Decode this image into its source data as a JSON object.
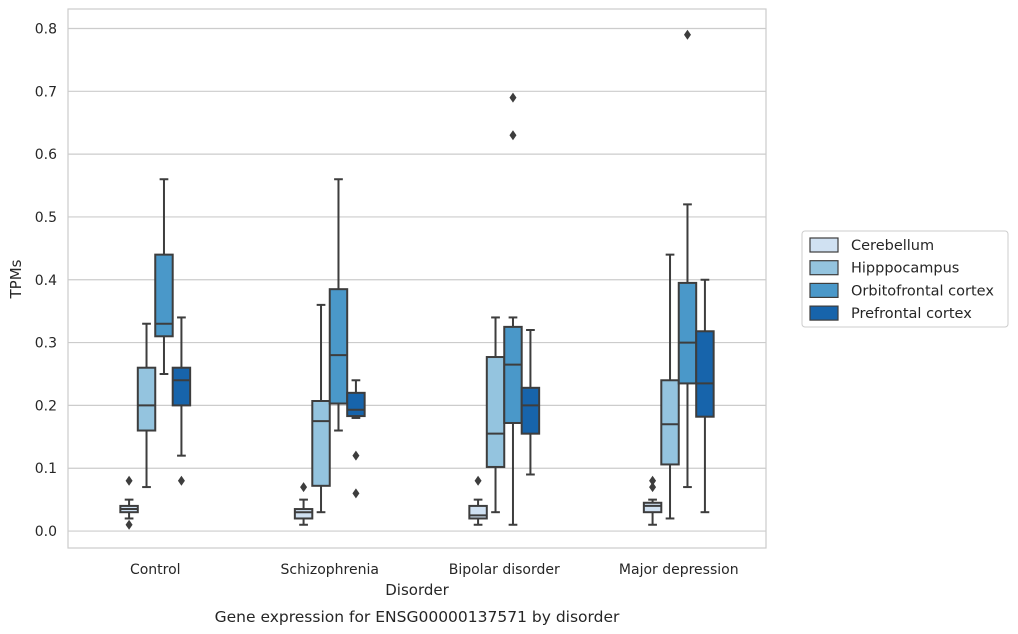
{
  "caption": "Gene expression for ENSG00000137571 by disorder",
  "chart_data": {
    "type": "boxplot",
    "xlabel": "Disorder",
    "ylabel": "TPMs",
    "ylim": [
      -0.027,
      0.831
    ],
    "yticks": [
      "0.0",
      "0.1",
      "0.2",
      "0.3",
      "0.4",
      "0.5",
      "0.6",
      "0.7",
      "0.8"
    ],
    "grid": true,
    "legend_position": "right",
    "categories": [
      "Control",
      "Schizophrenia",
      "Bipolar disorder",
      "Major depression"
    ],
    "series": [
      {
        "name": "Cerebellum",
        "color": "#d0e1f2",
        "boxes": [
          {
            "whislo": 0.02,
            "q1": 0.03,
            "med": 0.035,
            "q3": 0.04,
            "whishi": 0.05,
            "fliers": [
              0.08,
              0.01
            ]
          },
          {
            "whislo": 0.01,
            "q1": 0.02,
            "med": 0.03,
            "q3": 0.035,
            "whishi": 0.05,
            "fliers": [
              0.07
            ]
          },
          {
            "whislo": 0.01,
            "q1": 0.02,
            "med": 0.025,
            "q3": 0.04,
            "whishi": 0.05,
            "fliers": [
              0.08
            ]
          },
          {
            "whislo": 0.01,
            "q1": 0.03,
            "med": 0.04,
            "q3": 0.045,
            "whishi": 0.05,
            "fliers": [
              0.08,
              0.07
            ]
          }
        ]
      },
      {
        "name": "Hipppocampus",
        "color": "#94c4df",
        "boxes": [
          {
            "whislo": 0.07,
            "q1": 0.16,
            "med": 0.2,
            "q3": 0.26,
            "whishi": 0.33,
            "fliers": []
          },
          {
            "whislo": 0.03,
            "q1": 0.072,
            "med": 0.175,
            "q3": 0.207,
            "whishi": 0.36,
            "fliers": []
          },
          {
            "whislo": 0.03,
            "q1": 0.102,
            "med": 0.155,
            "q3": 0.277,
            "whishi": 0.34,
            "fliers": []
          },
          {
            "whislo": 0.02,
            "q1": 0.106,
            "med": 0.17,
            "q3": 0.24,
            "whishi": 0.44,
            "fliers": []
          }
        ]
      },
      {
        "name": "Orbitofrontal cortex",
        "color": "#4a98c9",
        "boxes": [
          {
            "whislo": 0.25,
            "q1": 0.31,
            "med": 0.33,
            "q3": 0.44,
            "whishi": 0.56,
            "fliers": []
          },
          {
            "whislo": 0.16,
            "q1": 0.203,
            "med": 0.28,
            "q3": 0.385,
            "whishi": 0.56,
            "fliers": []
          },
          {
            "whislo": 0.01,
            "q1": 0.172,
            "med": 0.265,
            "q3": 0.325,
            "whishi": 0.34,
            "fliers": [
              0.69,
              0.63
            ]
          },
          {
            "whislo": 0.07,
            "q1": 0.235,
            "med": 0.3,
            "q3": 0.395,
            "whishi": 0.52,
            "fliers": [
              0.79
            ]
          }
        ]
      },
      {
        "name": "Prefrontal cortex",
        "color": "#1764ab",
        "boxes": [
          {
            "whislo": 0.12,
            "q1": 0.2,
            "med": 0.24,
            "q3": 0.26,
            "whishi": 0.34,
            "fliers": [
              0.08
            ]
          },
          {
            "whislo": 0.18,
            "q1": 0.183,
            "med": 0.193,
            "q3": 0.22,
            "whishi": 0.24,
            "fliers": [
              0.12,
              0.06
            ]
          },
          {
            "whislo": 0.09,
            "q1": 0.155,
            "med": 0.2,
            "q3": 0.228,
            "whishi": 0.32,
            "fliers": []
          },
          {
            "whislo": 0.03,
            "q1": 0.182,
            "med": 0.235,
            "q3": 0.318,
            "whishi": 0.4,
            "fliers": []
          }
        ]
      }
    ]
  }
}
